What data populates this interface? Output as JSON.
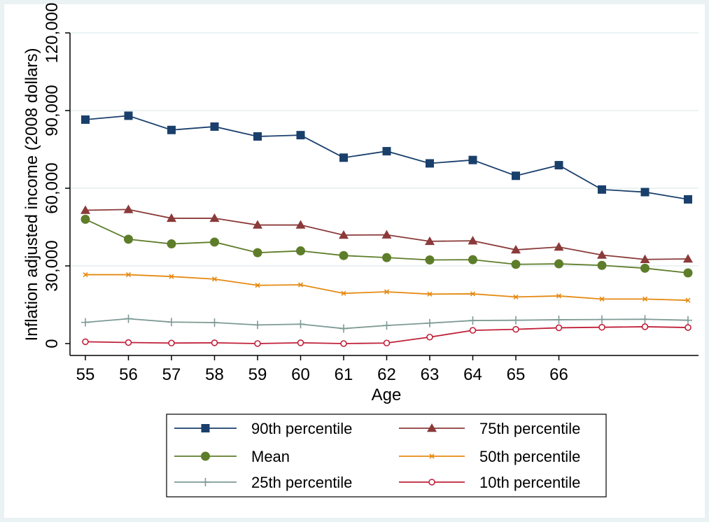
{
  "chart_data": {
    "type": "line",
    "title": "",
    "xlabel": "Age",
    "ylabel": "Inflation adjusted income (2008 dollars)",
    "ylim": [
      0,
      120000
    ],
    "yticks": [
      0,
      30000,
      60000,
      90000,
      120000
    ],
    "ytick_labels": [
      "0",
      "30,000",
      "60,000",
      "90,000",
      "120,000"
    ],
    "xlim": [
      55,
      69
    ],
    "xticks": [
      55,
      56,
      57,
      58,
      59,
      60,
      61,
      62,
      63,
      64,
      65,
      66
    ],
    "xtick_labels": [
      "55",
      "56",
      "57",
      "58",
      "59",
      "60",
      "61",
      "62",
      "63",
      "64",
      "65",
      "66"
    ],
    "x": [
      55,
      56,
      57,
      58,
      59,
      60,
      61,
      62,
      63,
      64,
      65,
      66,
      67,
      68,
      69
    ],
    "grid": "horizontal",
    "legend_position": "bottom",
    "series": [
      {
        "name": "90th percentile",
        "color": "#1a3f6b",
        "marker": "square",
        "values": [
          86500,
          88000,
          82500,
          83800,
          80000,
          80500,
          71800,
          74300,
          69600,
          70900,
          64800,
          68900,
          59500,
          58500,
          55700
        ]
      },
      {
        "name": "75th percentile",
        "color": "#8b3a3a",
        "marker": "triangle",
        "values": [
          51500,
          51800,
          48400,
          48400,
          45800,
          45800,
          41900,
          42000,
          39500,
          39700,
          36200,
          37300,
          34200,
          32500,
          32700
        ]
      },
      {
        "name": "Mean",
        "color": "#5e7d2a",
        "marker": "circle",
        "values": [
          48000,
          40300,
          38500,
          39200,
          35100,
          35800,
          34000,
          33200,
          32300,
          32400,
          30600,
          30800,
          30200,
          29100,
          27300
        ]
      },
      {
        "name": "50th percentile",
        "color": "#e58a12",
        "marker": "x",
        "values": [
          26600,
          26600,
          25900,
          24900,
          22500,
          22700,
          19400,
          20000,
          19100,
          19200,
          18000,
          18400,
          17200,
          17200,
          16700
        ]
      },
      {
        "name": "25th percentile",
        "color": "#7d9a94",
        "marker": "plus",
        "values": [
          8200,
          9600,
          8300,
          8100,
          7200,
          7500,
          5800,
          7000,
          7900,
          8900,
          9000,
          9200,
          9300,
          9400,
          9000
        ]
      },
      {
        "name": "10th percentile",
        "color": "#c0203a",
        "marker": "hollow-circle",
        "values": [
          700,
          400,
          200,
          300,
          0,
          300,
          0,
          200,
          2500,
          5100,
          5500,
          6100,
          6300,
          6500,
          6200
        ]
      }
    ]
  }
}
